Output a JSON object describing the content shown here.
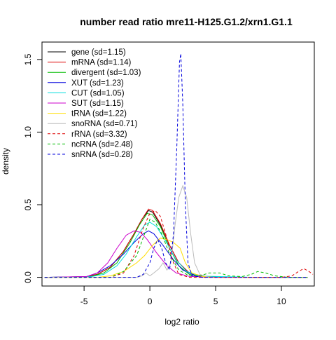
{
  "chart_data": {
    "type": "line",
    "title": "number read ratio mre11-H125.G1.2/xrn1.G1.1",
    "xlabel": "log2 ratio",
    "ylabel": "density",
    "xlim": [
      -8.2,
      12.5
    ],
    "ylim": [
      -0.06,
      1.62
    ],
    "x_ticks": [
      {
        "value": -5,
        "label": "-5"
      },
      {
        "value": 0,
        "label": "0"
      },
      {
        "value": 5,
        "label": "5"
      },
      {
        "value": 10,
        "label": "10"
      }
    ],
    "y_ticks": [
      {
        "value": 0.0,
        "label": "0.0"
      },
      {
        "value": 0.5,
        "label": "0.5"
      },
      {
        "value": 1.0,
        "label": "1.0"
      },
      {
        "value": 1.5,
        "label": "1.5"
      }
    ],
    "grid": false,
    "legend_position": "top-left",
    "series": [
      {
        "name": "gene (sd=1.15)",
        "color": "#000000",
        "dash": "solid",
        "points": [
          [
            -8,
            0
          ],
          [
            -5,
            0.002
          ],
          [
            -4,
            0.02
          ],
          [
            -3,
            0.07
          ],
          [
            -2,
            0.18
          ],
          [
            -1.2,
            0.3
          ],
          [
            -0.6,
            0.4
          ],
          [
            -0.1,
            0.46
          ],
          [
            0.2,
            0.45
          ],
          [
            0.8,
            0.36
          ],
          [
            1.5,
            0.22
          ],
          [
            2.2,
            0.1
          ],
          [
            3,
            0.03
          ],
          [
            4,
            0.008
          ],
          [
            5,
            0.002
          ],
          [
            8,
            0
          ],
          [
            12,
            0
          ]
        ]
      },
      {
        "name": "mRNA (sd=1.14)",
        "color": "#dd0000",
        "dash": "solid",
        "points": [
          [
            -8,
            0
          ],
          [
            -5,
            0.002
          ],
          [
            -4,
            0.02
          ],
          [
            -3,
            0.07
          ],
          [
            -2,
            0.18
          ],
          [
            -1.2,
            0.3
          ],
          [
            -0.6,
            0.4
          ],
          [
            -0.1,
            0.47
          ],
          [
            0.2,
            0.46
          ],
          [
            0.8,
            0.37
          ],
          [
            1.5,
            0.22
          ],
          [
            2.2,
            0.1
          ],
          [
            3,
            0.03
          ],
          [
            4,
            0.008
          ],
          [
            5,
            0.002
          ],
          [
            8,
            0
          ],
          [
            12,
            0
          ]
        ]
      },
      {
        "name": "divergent (sd=1.03)",
        "color": "#00bb00",
        "dash": "solid",
        "points": [
          [
            -8,
            0
          ],
          [
            -4.5,
            0.005
          ],
          [
            -3.5,
            0.03
          ],
          [
            -2.5,
            0.1
          ],
          [
            -1.5,
            0.24
          ],
          [
            -0.8,
            0.36
          ],
          [
            -0.2,
            0.44
          ],
          [
            0.2,
            0.43
          ],
          [
            0.8,
            0.35
          ],
          [
            1.5,
            0.2
          ],
          [
            2.2,
            0.08
          ],
          [
            3,
            0.02
          ],
          [
            4,
            0.004
          ],
          [
            8,
            0
          ],
          [
            12,
            0
          ]
        ]
      },
      {
        "name": "XUT (sd=1.23)",
        "color": "#0000dd",
        "dash": "solid",
        "points": [
          [
            -8,
            0
          ],
          [
            -4.8,
            0.005
          ],
          [
            -4,
            0.03
          ],
          [
            -3,
            0.08
          ],
          [
            -2,
            0.16
          ],
          [
            -1.2,
            0.24
          ],
          [
            -0.5,
            0.3
          ],
          [
            -0.1,
            0.32
          ],
          [
            0.3,
            0.3
          ],
          [
            1,
            0.22
          ],
          [
            1.8,
            0.12
          ],
          [
            2.5,
            0.05
          ],
          [
            3.5,
            0.01
          ],
          [
            5,
            0.001
          ],
          [
            8,
            0
          ],
          [
            12,
            0
          ]
        ]
      },
      {
        "name": "CUT (sd=1.05)",
        "color": "#00dddd",
        "dash": "solid",
        "points": [
          [
            -8,
            0
          ],
          [
            -4.5,
            0.004
          ],
          [
            -3.5,
            0.02
          ],
          [
            -2.5,
            0.08
          ],
          [
            -1.8,
            0.16
          ],
          [
            -1,
            0.28
          ],
          [
            -0.4,
            0.36
          ],
          [
            0,
            0.38
          ],
          [
            0.5,
            0.35
          ],
          [
            1.2,
            0.25
          ],
          [
            2,
            0.12
          ],
          [
            2.8,
            0.04
          ],
          [
            3.8,
            0.008
          ],
          [
            8,
            0
          ],
          [
            12,
            0
          ]
        ]
      },
      {
        "name": "SUT (sd=1.15)",
        "color": "#cc00cc",
        "dash": "solid",
        "points": [
          [
            -8,
            0
          ],
          [
            -4.8,
            0.005
          ],
          [
            -4,
            0.03
          ],
          [
            -3.2,
            0.1
          ],
          [
            -2.5,
            0.2
          ],
          [
            -1.8,
            0.29
          ],
          [
            -1.2,
            0.32
          ],
          [
            -0.7,
            0.31
          ],
          [
            -0.2,
            0.26
          ],
          [
            0.5,
            0.17
          ],
          [
            1.3,
            0.08
          ],
          [
            2,
            0.03
          ],
          [
            3,
            0.006
          ],
          [
            5,
            0
          ],
          [
            8,
            0
          ],
          [
            12,
            0
          ]
        ]
      },
      {
        "name": "tRNA (sd=1.22)",
        "color": "#ffdd00",
        "dash": "solid",
        "points": [
          [
            -8,
            0
          ],
          [
            -4,
            0
          ],
          [
            -3,
            0.01
          ],
          [
            -2,
            0.04
          ],
          [
            -1,
            0.1
          ],
          [
            -0.4,
            0.15
          ],
          [
            0.2,
            0.22
          ],
          [
            0.8,
            0.27
          ],
          [
            1.3,
            0.26
          ],
          [
            1.8,
            0.24
          ],
          [
            2.3,
            0.2
          ],
          [
            2.7,
            0.1
          ],
          [
            3.2,
            0.03
          ],
          [
            4,
            0.005
          ],
          [
            5,
            0
          ],
          [
            8,
            0
          ],
          [
            12,
            0
          ]
        ]
      },
      {
        "name": "snoRNA (sd=0.71)",
        "color": "#bbbbbb",
        "dash": "solid",
        "points": [
          [
            -8,
            0
          ],
          [
            -1,
            0
          ],
          [
            -0.6,
            0.01
          ],
          [
            -0.3,
            0.03
          ],
          [
            0,
            0.01
          ],
          [
            0.3,
            0.03
          ],
          [
            0.7,
            0.06
          ],
          [
            1,
            0.1
          ],
          [
            1.3,
            0.05
          ],
          [
            1.6,
            0.1
          ],
          [
            1.9,
            0.35
          ],
          [
            2.2,
            0.55
          ],
          [
            2.5,
            0.63
          ],
          [
            2.8,
            0.55
          ],
          [
            3.1,
            0.3
          ],
          [
            3.4,
            0.1
          ],
          [
            3.8,
            0.02
          ],
          [
            4.5,
            0
          ],
          [
            8,
            0
          ],
          [
            12,
            0
          ]
        ]
      },
      {
        "name": "rRNA (sd=3.32)",
        "color": "#dd0000",
        "dash": "dashed",
        "points": [
          [
            -8,
            0
          ],
          [
            -3,
            0
          ],
          [
            -2,
            0.03
          ],
          [
            -1.2,
            0.15
          ],
          [
            -0.5,
            0.34
          ],
          [
            0,
            0.44
          ],
          [
            0.4,
            0.46
          ],
          [
            0.8,
            0.42
          ],
          [
            1.2,
            0.3
          ],
          [
            1.7,
            0.12
          ],
          [
            2.2,
            0.02
          ],
          [
            3,
            0
          ],
          [
            10,
            0
          ],
          [
            10.8,
            0.01
          ],
          [
            11.3,
            0.04
          ],
          [
            11.7,
            0.06
          ],
          [
            12.1,
            0.04
          ],
          [
            12.4,
            0.02
          ]
        ]
      },
      {
        "name": "ncRNA (sd=2.48)",
        "color": "#00bb00",
        "dash": "dashed",
        "points": [
          [
            -8,
            0
          ],
          [
            -3,
            0
          ],
          [
            -2,
            0.04
          ],
          [
            -1,
            0.15
          ],
          [
            -0.4,
            0.3
          ],
          [
            0,
            0.4
          ],
          [
            0.4,
            0.38
          ],
          [
            0.9,
            0.3
          ],
          [
            1.5,
            0.16
          ],
          [
            2.2,
            0.05
          ],
          [
            3,
            0.01
          ],
          [
            3.8,
            0.01
          ],
          [
            4.5,
            0.03
          ],
          [
            5.3,
            0.03
          ],
          [
            6,
            0.01
          ],
          [
            7,
            0.005
          ],
          [
            7.7,
            0.02
          ],
          [
            8.2,
            0.04
          ],
          [
            8.8,
            0.03
          ],
          [
            9.5,
            0.01
          ],
          [
            10.5,
            0
          ],
          [
            12,
            0
          ]
        ]
      },
      {
        "name": "snRNA (sd=0.28)",
        "color": "#0000dd",
        "dash": "dashed",
        "points": [
          [
            -8,
            0
          ],
          [
            -1,
            0
          ],
          [
            -0.5,
            0.02
          ],
          [
            0,
            0.1
          ],
          [
            0.3,
            0.2
          ],
          [
            0.6,
            0.26
          ],
          [
            0.9,
            0.2
          ],
          [
            1.2,
            0.1
          ],
          [
            1.5,
            0.05
          ],
          [
            1.8,
            0.3
          ],
          [
            2.05,
            0.9
          ],
          [
            2.25,
            1.48
          ],
          [
            2.35,
            1.54
          ],
          [
            2.5,
            1.2
          ],
          [
            2.7,
            0.5
          ],
          [
            2.9,
            0.1
          ],
          [
            3.2,
            0.01
          ],
          [
            4,
            0
          ],
          [
            8,
            0
          ],
          [
            12,
            0
          ]
        ]
      }
    ]
  }
}
